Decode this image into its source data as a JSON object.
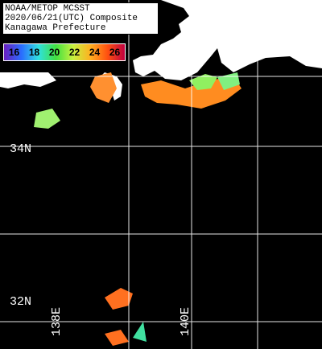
{
  "title": [
    "NOAA/METOP MCSST",
    "2020/06/21(UTC) Composite",
    "Kanagawa Prefecture"
  ],
  "legend": {
    "ticks": [
      16,
      18,
      20,
      22,
      24,
      26
    ]
  },
  "grid_labels": {
    "latitudes": [
      "34N",
      "32N"
    ],
    "longitudes": [
      "138E",
      "140E"
    ]
  }
}
